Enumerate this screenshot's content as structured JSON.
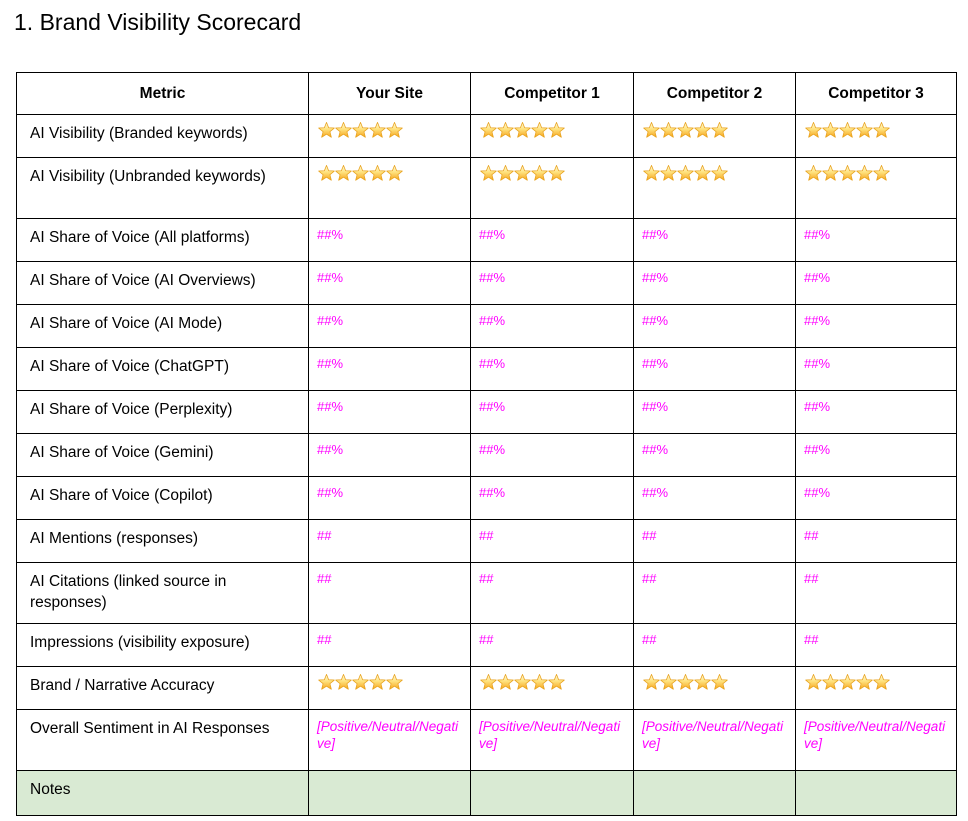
{
  "title": "1. Brand Visibility Scorecard",
  "colors": {
    "placeholder_text": "#FF00FF",
    "notes_row_bg": "#D9EAD3",
    "table_border": "#000000",
    "star_top": "#FFFBE0",
    "star_mid": "#FFE380",
    "star_bottom": "#F6A41B",
    "star_outline": "#E8A21D"
  },
  "table": {
    "headers": [
      "Metric",
      "Your Site",
      "Competitor 1",
      "Competitor 2",
      "Competitor 3"
    ],
    "rows": [
      {
        "metric": "AI Visibility (Branded keywords)",
        "type": "stars",
        "values": [
          5,
          5,
          5,
          5
        ]
      },
      {
        "metric": "AI Visibility (Unbranded keywords)",
        "type": "stars",
        "tall": true,
        "values": [
          5,
          5,
          5,
          5
        ]
      },
      {
        "metric": "AI Share of Voice (All platforms)",
        "type": "percent",
        "values": [
          "##%",
          "##%",
          "##%",
          "##%"
        ]
      },
      {
        "metric": "AI Share of Voice (AI Overviews)",
        "type": "percent",
        "values": [
          "##%",
          "##%",
          "##%",
          "##%"
        ]
      },
      {
        "metric": "AI Share of Voice (AI Mode)",
        "type": "percent",
        "values": [
          "##%",
          "##%",
          "##%",
          "##%"
        ]
      },
      {
        "metric": "AI Share of Voice (ChatGPT)",
        "type": "percent",
        "values": [
          "##%",
          "##%",
          "##%",
          "##%"
        ]
      },
      {
        "metric": "AI Share of Voice (Perplexity)",
        "type": "percent",
        "values": [
          "##%",
          "##%",
          "##%",
          "##%"
        ]
      },
      {
        "metric": "AI Share of Voice (Gemini)",
        "type": "percent",
        "values": [
          "##%",
          "##%",
          "##%",
          "##%"
        ]
      },
      {
        "metric": "AI Share of Voice (Copilot)",
        "type": "percent",
        "values": [
          "##%",
          "##%",
          "##%",
          "##%"
        ]
      },
      {
        "metric": "AI Mentions (responses)",
        "type": "count",
        "values": [
          "##",
          "##",
          "##",
          "##"
        ]
      },
      {
        "metric": "AI Citations (linked source in responses)",
        "type": "count",
        "tall": true,
        "values": [
          "##",
          "##",
          "##",
          "##"
        ]
      },
      {
        "metric": "Impressions (visibility exposure)",
        "type": "count",
        "values": [
          "##",
          "##",
          "##",
          "##"
        ]
      },
      {
        "metric": "Brand / Narrative Accuracy",
        "type": "stars",
        "values": [
          5,
          5,
          5,
          5
        ]
      },
      {
        "metric": "Overall Sentiment in AI Responses",
        "type": "sentiment",
        "tall": true,
        "values": [
          "[Positive/Neutral/Negative]",
          "[Positive/Neutral/Negative]",
          "[Positive/Neutral/Negative]",
          "[Positive/Neutral/Negative]"
        ]
      },
      {
        "metric": "Notes",
        "type": "notes",
        "values": [
          "",
          "",
          "",
          ""
        ]
      }
    ]
  }
}
